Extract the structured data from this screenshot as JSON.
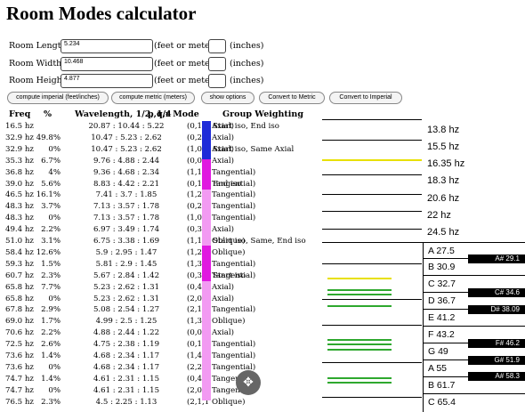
{
  "title": "Room Modes calculator",
  "form": [
    {
      "label": "Room Length:",
      "value": "5.234",
      "unit": "(feet or meters)",
      "unit2": "(inches)"
    },
    {
      "label": "Room Width:",
      "value": "10.468",
      "unit": "(feet or meters)",
      "unit2": "(inches)"
    },
    {
      "label": "Room Height:",
      "value": "4.877",
      "unit": "(feet or meters)",
      "unit2": "(inches)"
    }
  ],
  "buttons": [
    "compute imperial (feet/inches)",
    "compute metric (meters)",
    "show options",
    "Convert to Metric",
    "Convert to Imperial"
  ],
  "headers": {
    "freq": "Freq",
    "pct": "%",
    "wave": "Wavelength, 1/2, 1/4",
    "mode": "p,q,r Mode",
    "weight": "Group Weighting"
  },
  "rows": [
    [
      "16.5 hz",
      "",
      "20.87 : 10.44 : 5.22",
      "(0,1,0 Axial)",
      "Start iso, End iso"
    ],
    [
      "32.9 hz",
      "49.8%",
      "10.47 : 5.23 : 2.62",
      "(0,2,0 Axial)",
      ""
    ],
    [
      "32.9 hz",
      "0%",
      "10.47 : 5.23 : 2.62",
      "(1,0,0 Axial)",
      "Start iso, Same Axial"
    ],
    [
      "35.3 hz",
      "6.7%",
      "9.76 : 4.88 : 2.44",
      "(0,0,1 Axial)",
      ""
    ],
    [
      "36.8 hz",
      "4%",
      "9.36 : 4.68 : 2.34",
      "(1,1,0 Tangential)",
      ""
    ],
    [
      "39.0 hz",
      "5.6%",
      "8.83 : 4.42 : 2.21",
      "(0,1,1 Tangential)",
      "End iso"
    ],
    [
      "46.5 hz",
      "16.1%",
      "7.41 : 3.7 : 1.85",
      "(1,2,0 Tangential)",
      ""
    ],
    [
      "48.3 hz",
      "3.7%",
      "7.13 : 3.57 : 1.78",
      "(0,2,1 Tangential)",
      ""
    ],
    [
      "48.3 hz",
      "0%",
      "7.13 : 3.57 : 1.78",
      "(1,0,1 Tangential)",
      ""
    ],
    [
      "49.4 hz",
      "2.2%",
      "6.97 : 3.49 : 1.74",
      "(0,3,0 Axial)",
      ""
    ],
    [
      "51.0 hz",
      "3.1%",
      "6.75 : 3.38 : 1.69",
      "(1,1,1 Oblique)",
      "Start iso, Same, End iso"
    ],
    [
      "58.4 hz",
      "12.6%",
      "5.9 : 2.95 : 1.47",
      "(1,2,1 Oblique)",
      ""
    ],
    [
      "59.3 hz",
      "1.5%",
      "5.81 : 2.9 : 1.45",
      "(1,3,0 Tangential)",
      ""
    ],
    [
      "60.7 hz",
      "2.3%",
      "5.67 : 2.84 : 1.42",
      "(0,3,1 Tangential)",
      "Start iso"
    ],
    [
      "65.8 hz",
      "7.7%",
      "5.23 : 2.62 : 1.31",
      "(0,4,0 Axial)",
      ""
    ],
    [
      "65.8 hz",
      "0%",
      "5.23 : 2.62 : 1.31",
      "(2,0,0 Axial)",
      ""
    ],
    [
      "67.8 hz",
      "2.9%",
      "5.08 : 2.54 : 1.27",
      "(2,1,0 Tangential)",
      ""
    ],
    [
      "69.0 hz",
      "1.7%",
      "4.99 : 2.5 : 1.25",
      "(1,3,1 Oblique)",
      ""
    ],
    [
      "70.6 hz",
      "2.2%",
      "4.88 : 2.44 : 1.22",
      "(0,0,2 Axial)",
      ""
    ],
    [
      "72.5 hz",
      "2.6%",
      "4.75 : 2.38 : 1.19",
      "(0,1,2 Tangential)",
      ""
    ],
    [
      "73.6 hz",
      "1.4%",
      "4.68 : 2.34 : 1.17",
      "(1,4,0 Tangential)",
      ""
    ],
    [
      "73.6 hz",
      "0%",
      "4.68 : 2.34 : 1.17",
      "(2,2,0 Tangential)",
      ""
    ],
    [
      "74.7 hz",
      "1.4%",
      "4.61 : 2.31 : 1.15",
      "(0,4,1 Tangential)",
      ""
    ],
    [
      "74.7 hz",
      "0%",
      "4.61 : 2.31 : 1.15",
      "(2,0,1 Tangential)",
      ""
    ],
    [
      "76.5 hz",
      "2.3%",
      "4.5 : 2.25 : 1.13",
      "(2,1,1 Oblique)",
      ""
    ]
  ],
  "hz_labels": [
    "13.8 hz",
    "15.5 hz",
    "16.35 hz",
    "18.3 hz",
    "20.6 hz",
    "22 hz",
    "24.5 hz"
  ],
  "white_keys": [
    "A  27.5",
    "B  30.9",
    "C  32.7",
    "D  36.7",
    "E  41.2",
    "F  43.2",
    "G  49",
    "A  55",
    "B  61.7",
    "C  65.4"
  ],
  "black_keys": [
    "A#  29.1",
    "C#  34.6",
    "D#  38.09",
    "F#  46.2",
    "G#  51.9",
    "A#  58.3"
  ],
  "colors": {
    "axial": "#1f2bd8",
    "tangential": "#e018e0",
    "oblique": "#f29af2",
    "line_yellow": "#e8e000",
    "line_green": "#2ea82e"
  },
  "nav_icon": "move-arrows-icon"
}
